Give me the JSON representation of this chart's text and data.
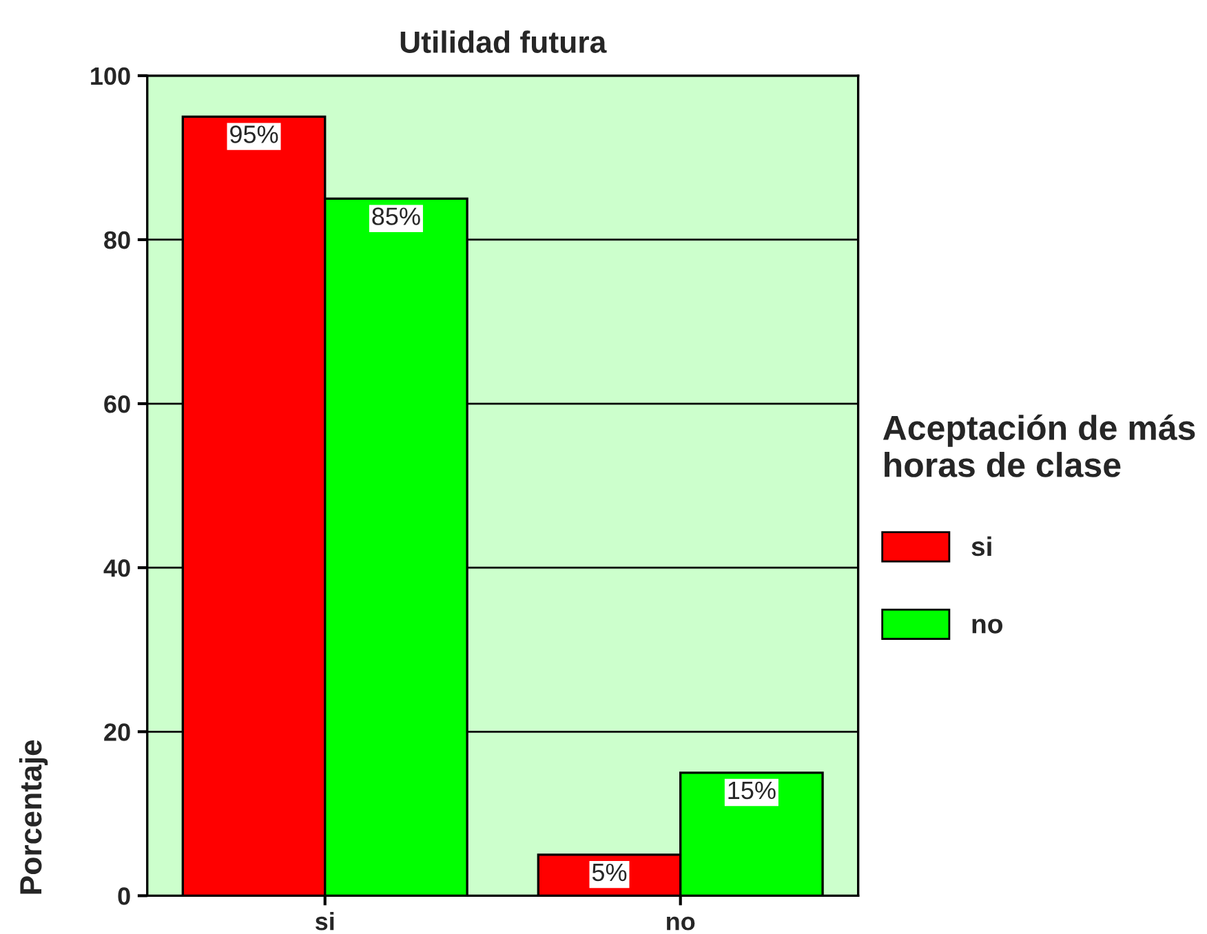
{
  "chart_data": {
    "type": "bar",
    "title": "Utilidad futura",
    "ylabel": "Porcentaje",
    "legend_title": "Aceptación de más\nhoras de clase",
    "categories": [
      "si",
      "no"
    ],
    "series": [
      {
        "name": "si",
        "color": "#ff0000",
        "values": [
          95,
          5
        ],
        "value_labels": [
          "95%",
          "5%"
        ]
      },
      {
        "name": "no",
        "color": "#00ff00",
        "values": [
          85,
          15
        ],
        "value_labels": [
          "85%",
          "15%"
        ]
      }
    ],
    "ylim": [
      0,
      100
    ],
    "yticks": [
      0,
      20,
      40,
      60,
      80,
      100
    ],
    "grid": "y",
    "legend": "right"
  }
}
